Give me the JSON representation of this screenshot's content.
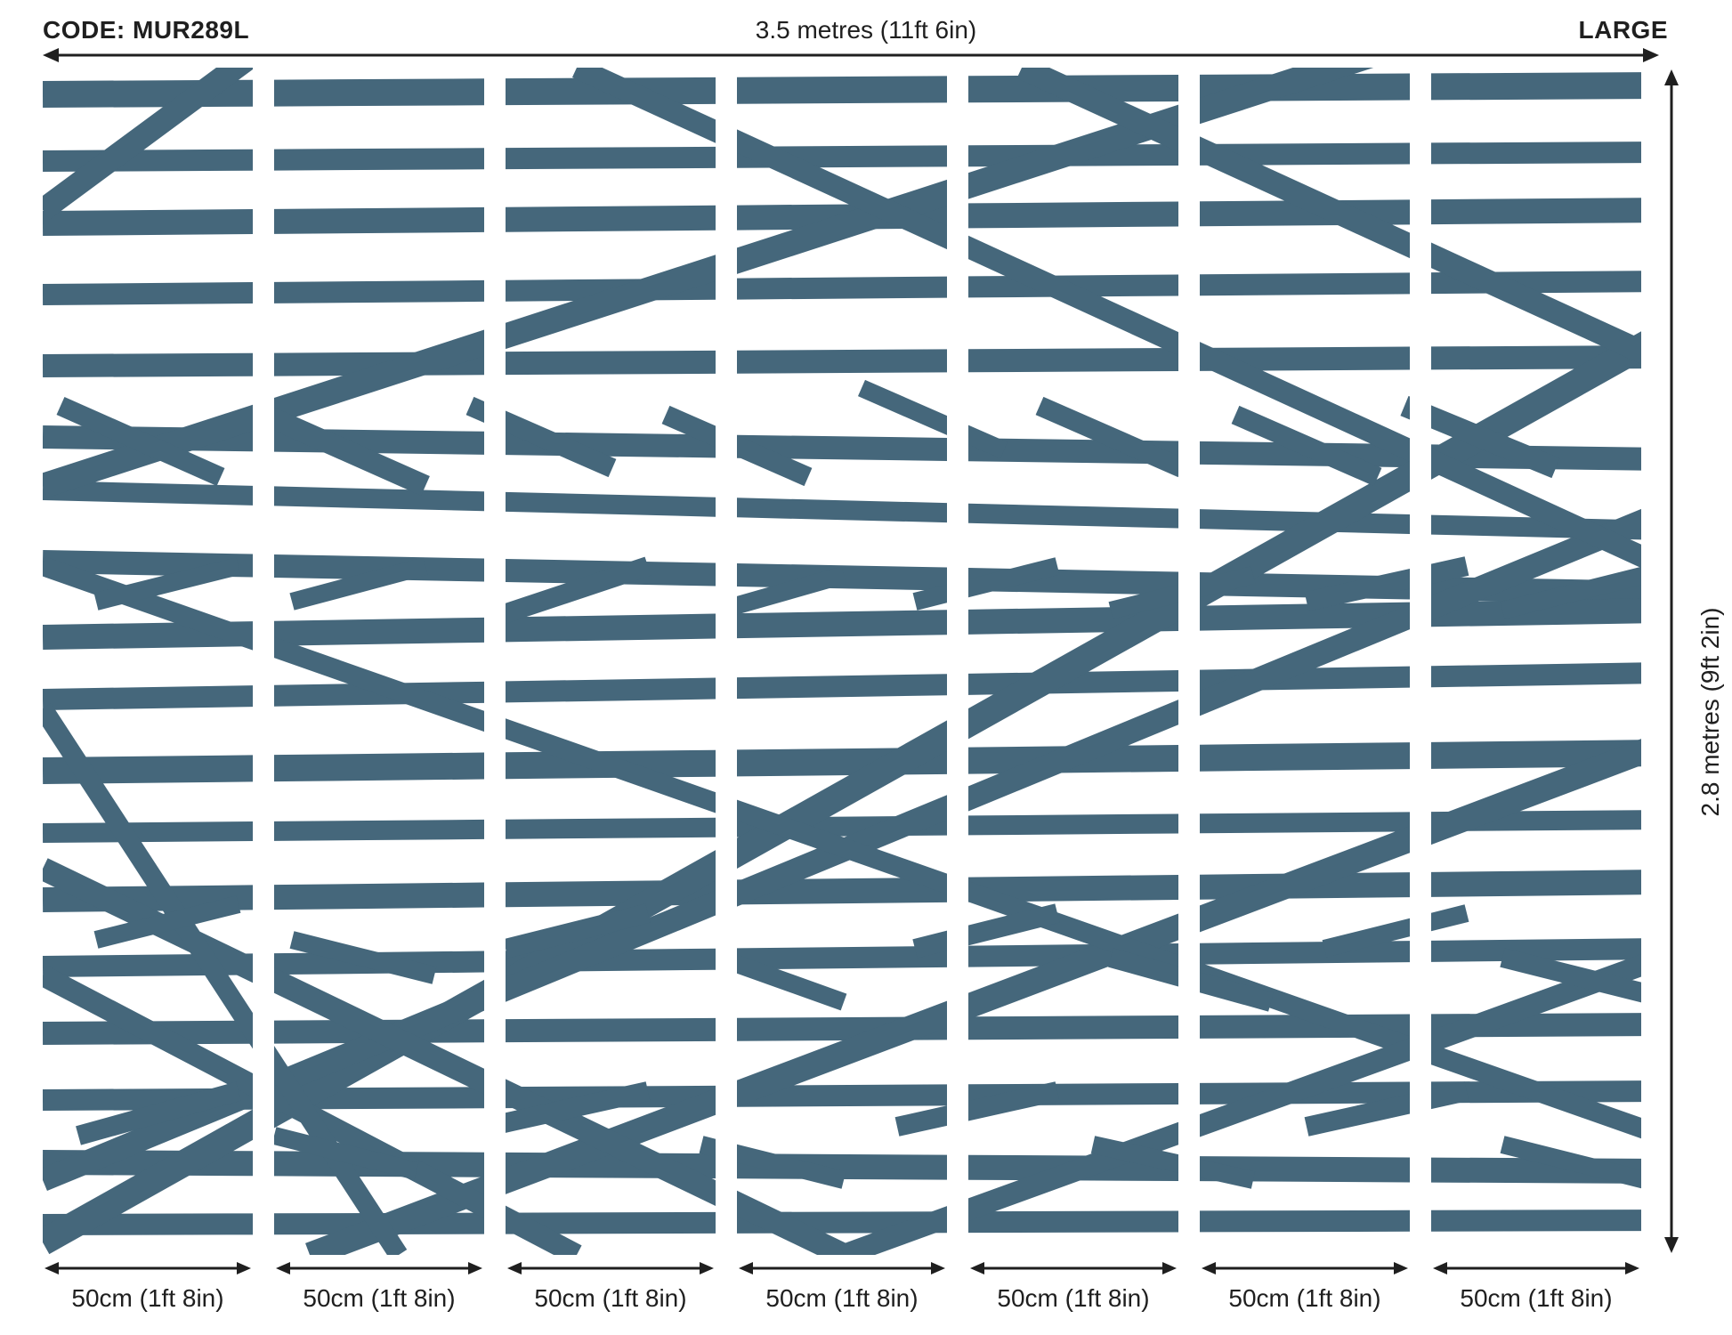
{
  "header": {
    "code": "CODE: MUR289L",
    "width_label": "3.5 metres (11ft 6in)",
    "size_label": "LARGE"
  },
  "height_label": "2.8 metres (9ft 2in)",
  "panels": [
    {
      "label": "50cm (1ft 8in)"
    },
    {
      "label": "50cm (1ft 8in)"
    },
    {
      "label": "50cm (1ft 8in)"
    },
    {
      "label": "50cm (1ft 8in)"
    },
    {
      "label": "50cm (1ft 8in)"
    },
    {
      "label": "50cm (1ft 8in)"
    },
    {
      "label": "50cm (1ft 8in)"
    }
  ],
  "colors": {
    "pattern": "#45677B",
    "background": "#ffffff",
    "text": "#1f1f1f"
  }
}
